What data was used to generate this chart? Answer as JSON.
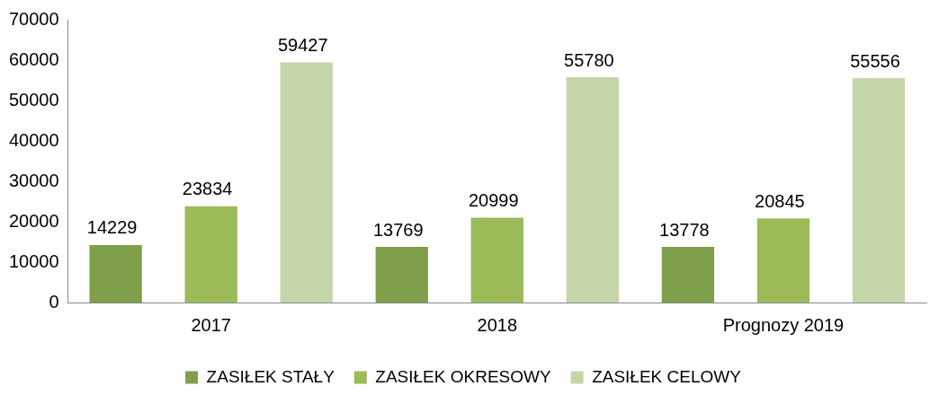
{
  "chart_data": {
    "type": "bar",
    "categories": [
      "2017",
      "2018",
      "Prognozy 2019"
    ],
    "series": [
      {
        "name": "ZASIŁEK STAŁY",
        "color": "#7f9f4b",
        "values": [
          14229,
          13769,
          13778
        ]
      },
      {
        "name": "ZASIŁEK OKRESOWY",
        "color": "#9bbb59",
        "values": [
          23834,
          20999,
          20845
        ]
      },
      {
        "name": "ZASIŁEK CELOWY",
        "color": "#c4d6a9",
        "values": [
          59427,
          55780,
          55556
        ]
      }
    ],
    "ylim": [
      0,
      70000
    ],
    "yticks": [
      0,
      10000,
      20000,
      30000,
      40000,
      50000,
      60000,
      70000
    ],
    "grid": false,
    "legend": "bottom",
    "data_labels": true
  }
}
